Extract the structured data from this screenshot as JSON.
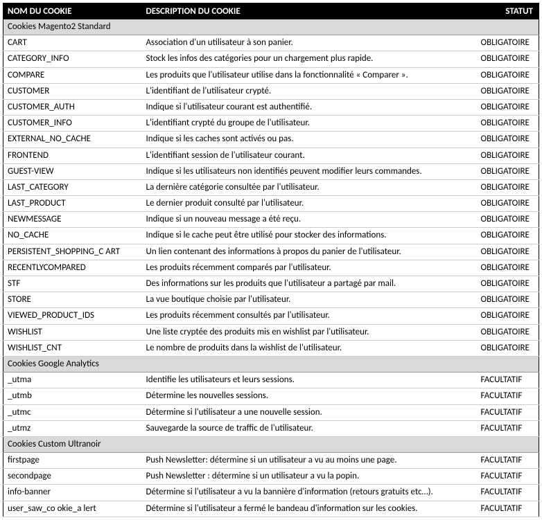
{
  "header": {
    "name": "NOM DU COOKIE",
    "desc": "DESCRIPTION DU COOKIE",
    "stat": "STATUT"
  },
  "sections": [
    {
      "title": "Cookies Magento2 Standard",
      "rows": [
        {
          "name": "CART",
          "desc": "Association d'un utilisateur à son panier.",
          "stat": "OBLIGATOIRE"
        },
        {
          "name": "CATEGORY_INFO",
          "desc": "Stock les infos des catégories pour un chargement plus rapide.",
          "stat": "OBLIGATOIRE"
        },
        {
          "name": "COMPARE",
          "desc": "Les produits que l'utilisateur utilise dans la fonctionnalité « Comparer ».",
          "stat": "OBLIGATOIRE"
        },
        {
          "name": "CUSTOMER",
          "desc": "L'identifiant de l'utilisateur crypté.",
          "stat": "OBLIGATOIRE"
        },
        {
          "name": "CUSTOMER_AUTH",
          "desc": "Indique si l'utilisateur courant est authentifié.",
          "stat": "OBLIGATOIRE"
        },
        {
          "name": "CUSTOMER_INFO",
          "desc": "L'identifiant crypté du groupe de l'utilisateur.",
          "stat": "OBLIGATOIRE"
        },
        {
          "name": "EXTERNAL_NO_CACHE",
          "desc": "Indique si les caches sont activés ou pas.",
          "stat": "OBLIGATOIRE"
        },
        {
          "name": "FRONTEND",
          "desc": "L'identifiant session de l'utilisateur courant.",
          "stat": "OBLIGATOIRE"
        },
        {
          "name": "GUEST-VIEW",
          "desc": "Indique si les utilisateurs non identifiés peuvent modifier leurs commandes.",
          "stat": "OBLIGATOIRE"
        },
        {
          "name": "LAST_CATEGORY",
          "desc": " La dernière catégorie consultée par l'utilisateur.",
          "stat": "OBLIGATOIRE"
        },
        {
          "name": "LAST_PRODUCT",
          "desc": "Le dernier produit consulté par l'utilisateur.",
          "stat": "OBLIGATOIRE"
        },
        {
          "name": "NEWMESSAGE",
          "desc": " Indique si un nouveau message a été reçu.",
          "stat": "OBLIGATOIRE"
        },
        {
          "name": "NO_CACHE",
          "desc": " Indique si le cache peut être utilisé pour stocker des informations.",
          "stat": "OBLIGATOIRE"
        },
        {
          "name": "PERSISTENT_SHOPPING_C ART",
          "desc": "Un lien contenant des informations à propos du panier de l'utilisateur.",
          "stat": "OBLIGATOIRE"
        },
        {
          "name": "RECENTLYCOMPARED",
          "desc": "Les produits récemment comparés par l'utilisateur.",
          "stat": "OBLIGATOIRE"
        },
        {
          "name": "STF",
          "desc": "Des informations sur les produits que l'utilisateur a partagé par mail.",
          "stat": "OBLIGATOIRE"
        },
        {
          "name": "STORE",
          "desc": "La vue boutique choisie par l'utilisateur.",
          "stat": "OBLIGATOIRE"
        },
        {
          "name": "VIEWED_PRODUCT_IDS",
          "desc": "Les produits récemment consultés par l'utilisateur.",
          "stat": "OBLIGATOIRE"
        },
        {
          "name": "WISHLIST",
          "desc": "Une liste cryptée des produits mis en wishlist par l'utilisateur.",
          "stat": "OBLIGATOIRE"
        },
        {
          "name": "WISHLIST_CNT",
          "desc": "Le nombre de produits dans la wishlist de l'utilisateur.",
          "stat": "OBLIGATOIRE"
        }
      ]
    },
    {
      "title": "Cookies Google Analytics",
      "rows": [
        {
          "name": "_utma",
          "desc": "Identifie les utilisateurs et leurs sessions.",
          "stat": "FACULTATIF"
        },
        {
          "name": "_utmb",
          "desc": "Détermine les nouvelles sessions.",
          "stat": "FACULTATIF"
        },
        {
          "name": "_utmc",
          "desc": "Détermine si l'utilisateur a une nouvelle session.",
          "stat": "FACULTATIF"
        },
        {
          "name": "_utmz",
          "desc": "Sauvegarde la source de traffic de l'utilisateur.",
          "stat": "FACULTATIF"
        }
      ]
    },
    {
      "title": "Cookies Custom Ultranoir",
      "rows": [
        {
          "name": "firstpage",
          "desc": "Push Newsletter: détermine si un utilisateur a vu au moins une page.",
          "stat": "FACULTATIF"
        },
        {
          "name": "secondpage",
          "desc": "Push Newsletter : détermine si un utilisateur a vu la popin.",
          "stat": "FACULTATIF"
        },
        {
          "name": "info-banner",
          "desc": "Détermine si l'utilisateur a vu la bannière d'information (retours gratuits etc…).",
          "stat": "FACULTATIF"
        },
        {
          "name": "user_saw_co okie_a lert",
          "desc": "Détermine si l'utilisateur a fermé le bandeau d'information sur les cookies.",
          "stat": "FACULTATIF"
        }
      ]
    }
  ]
}
